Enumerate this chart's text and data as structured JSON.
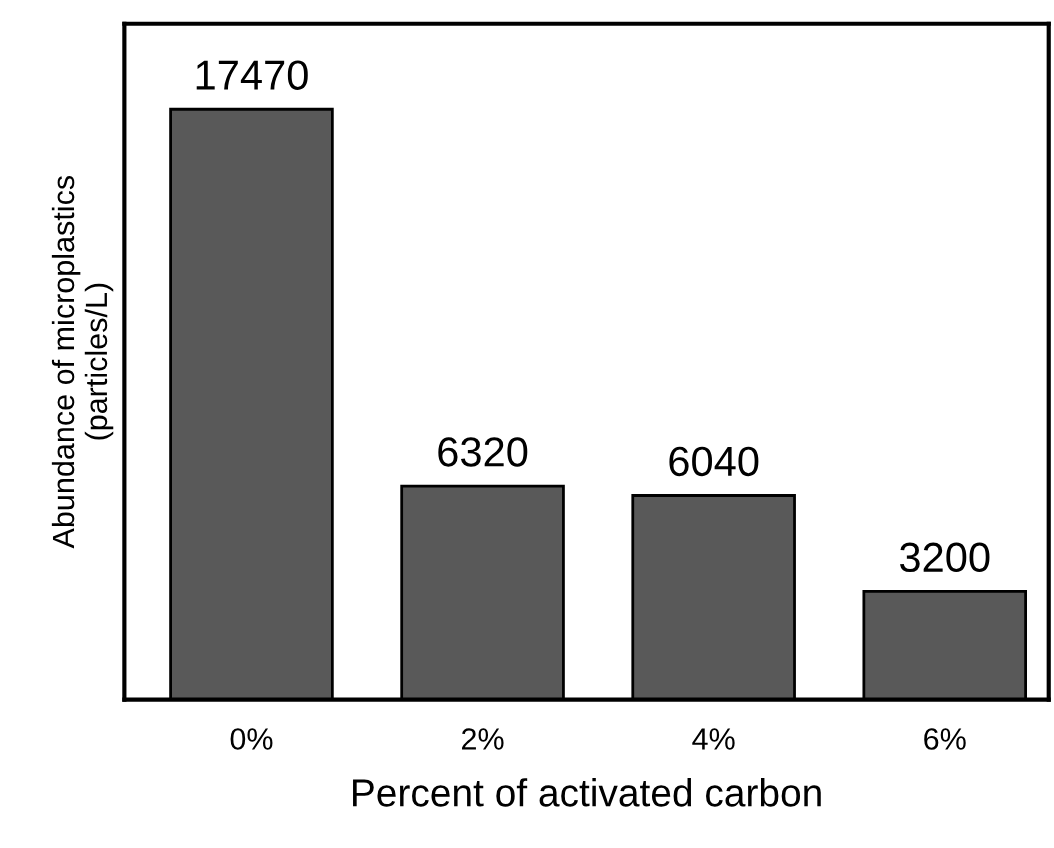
{
  "chart_data": {
    "type": "bar",
    "xlabel": "Percent of activated carbon",
    "ylabel": "Abundance of microplastics\n(particles/L)",
    "categories": [
      "0%",
      "2%",
      "4%",
      "6%"
    ],
    "values": [
      17470,
      6320,
      6040,
      3200
    ],
    "color": "#595959",
    "ylim": [
      0,
      20000
    ],
    "tick_labels": "x",
    "data_labels": true,
    "grid": false,
    "legend": false
  }
}
